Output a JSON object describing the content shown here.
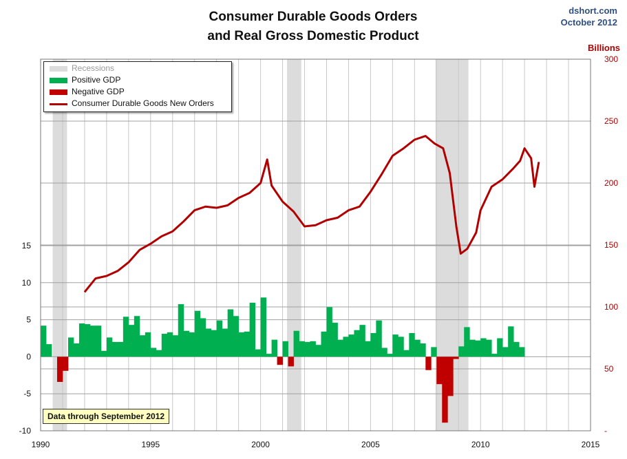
{
  "title": "Consumer Durable Goods Orders",
  "subtitle": "and Real Gross Domestic Product",
  "source": "dshort.com",
  "date": "October 2012",
  "right_axis_label": "Billions",
  "note": "Data through September 2012",
  "colors": {
    "recession": "#dcdcdc",
    "positive_gdp": "#00b050",
    "negative_gdp": "#c00000",
    "orders_line": "#b00000",
    "right_axis_text": "#b00000",
    "note_bg": "#ffffc0"
  },
  "legend": [
    {
      "label": "Recessions",
      "color": "#dcdcdc",
      "type": "band"
    },
    {
      "label": "Positive GDP",
      "color": "#00b050",
      "type": "band"
    },
    {
      "label": "Negative GDP",
      "color": "#c00000",
      "type": "band"
    },
    {
      "label": "Consumer Durable Goods New Orders",
      "color": "#b00000",
      "type": "line"
    }
  ],
  "chart_data": {
    "type": "bar",
    "title": "Consumer Durable Goods Orders and Real Gross Domestic Product",
    "x_axis": {
      "range": [
        1990,
        2015
      ],
      "ticks": [
        1990,
        1995,
        2000,
        2005,
        2010,
        2015
      ]
    },
    "y_left": {
      "range": [
        -10,
        15
      ],
      "ticks": [
        -10,
        -5,
        0,
        5,
        10,
        15
      ]
    },
    "y_right": {
      "label": "Billions",
      "range": [
        0,
        300
      ],
      "ticks": [
        50,
        100,
        150,
        200,
        250,
        300
      ],
      "zero_tick": "-"
    },
    "grid": true,
    "legend_position": "top-left",
    "recessions": [
      [
        1990.55,
        1991.2
      ],
      [
        2001.2,
        2001.85
      ],
      [
        2007.95,
        2009.45
      ]
    ],
    "gdp_quarterly": {
      "name": "Real GDP",
      "start": 1990.0,
      "step": 0.25,
      "values": [
        4.2,
        1.7,
        0.0,
        -3.4,
        -1.9,
        2.6,
        1.8,
        4.5,
        4.4,
        4.2,
        4.2,
        0.8,
        2.6,
        2.0,
        2.0,
        5.4,
        4.3,
        5.5,
        2.9,
        3.3,
        1.2,
        0.9,
        3.1,
        3.3,
        2.9,
        7.1,
        3.5,
        3.3,
        6.2,
        5.2,
        3.8,
        3.6,
        4.9,
        3.8,
        6.4,
        5.5,
        3.3,
        3.4,
        7.3,
        1.0,
        8.0,
        0.4,
        2.3,
        -1.1,
        2.1,
        -1.3,
        3.5,
        2.1,
        2.0,
        2.1,
        1.6,
        3.4,
        6.7,
        4.6,
        2.3,
        2.7,
        3.0,
        3.6,
        4.3,
        2.1,
        3.2,
        4.9,
        1.2,
        0.4,
        3.0,
        2.7,
        0.9,
        3.2,
        2.3,
        1.8,
        -1.8,
        1.3,
        -3.7,
        -8.9,
        -5.3,
        -0.3,
        1.4,
        4.0,
        2.3,
        2.2,
        2.5,
        2.3,
        0.4,
        2.5,
        1.3,
        4.1,
        2.0,
        1.3
      ]
    },
    "series": [
      {
        "name": "Consumer Durable Goods New Orders",
        "axis": "right",
        "x": [
          1992.0,
          1992.5,
          1993.0,
          1993.5,
          1994.0,
          1994.5,
          1995.0,
          1995.5,
          1996.0,
          1996.5,
          1997.0,
          1997.5,
          1998.0,
          1998.5,
          1999.0,
          1999.5,
          2000.0,
          2000.3,
          2000.5,
          2001.0,
          2001.5,
          2002.0,
          2002.5,
          2003.0,
          2003.5,
          2004.0,
          2004.5,
          2005.0,
          2005.5,
          2006.0,
          2006.5,
          2007.0,
          2007.5,
          2007.9,
          2008.3,
          2008.6,
          2008.9,
          2009.1,
          2009.4,
          2009.8,
          2010.0,
          2010.5,
          2011.0,
          2011.5,
          2011.8,
          2012.0,
          2012.3,
          2012.45,
          2012.65
        ],
        "values": [
          112,
          123,
          125,
          129,
          136,
          146,
          151,
          157,
          161,
          169,
          178,
          181,
          180,
          182,
          188,
          192,
          200,
          219,
          198,
          185,
          177,
          165,
          166,
          170,
          172,
          178,
          181,
          193,
          207,
          222,
          228,
          235,
          238,
          232,
          228,
          208,
          165,
          143,
          147,
          160,
          178,
          197,
          203,
          212,
          218,
          228,
          220,
          197,
          217
        ]
      }
    ]
  }
}
